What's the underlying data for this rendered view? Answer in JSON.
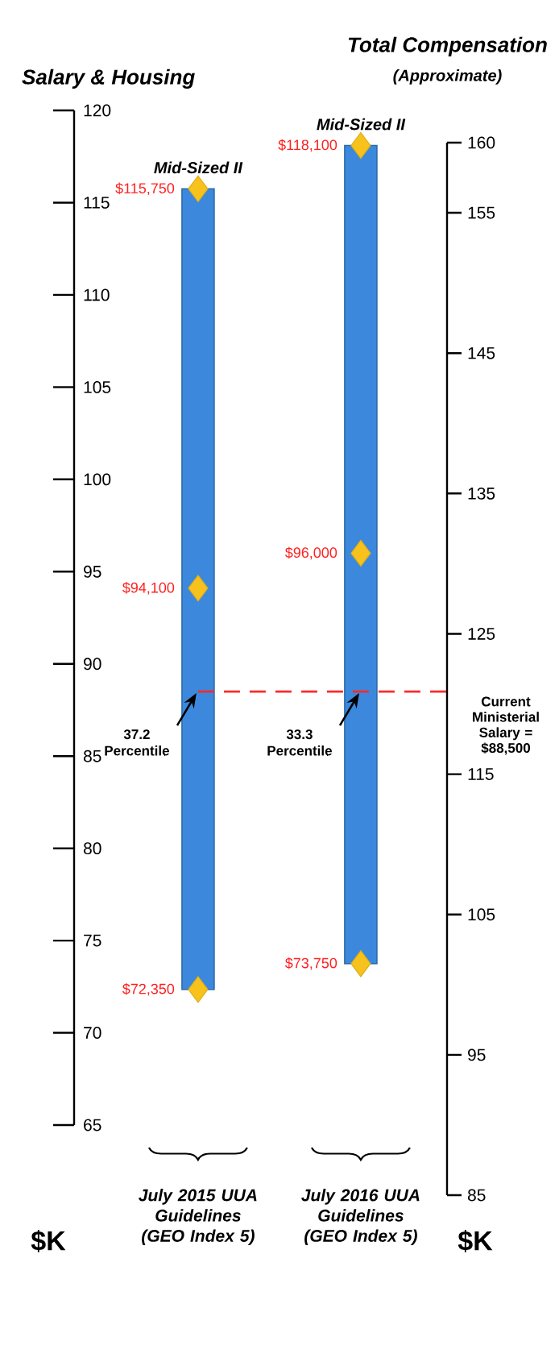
{
  "chart_data": {
    "type": "bar",
    "categories": [
      "July 2015 UUA Guidelines (GEO Index 5)",
      "July 2016 UUA Guidelines (GEO Index 5)"
    ],
    "series": [
      {
        "color": "#3c88dc",
        "base": [
          72.35,
          73.75
        ],
        "values": [
          43.4,
          44.35
        ]
      },
      {
        "type": "scatter",
        "marker": "diamond",
        "color": "#f7c21b",
        "x": [
          "July 2015 UUA Guidelines (GEO Index 5)",
          "July 2015 UUA Guidelines (GEO Index 5)",
          "July 2015 UUA Guidelines (GEO Index 5)",
          "July 2016 UUA Guidelines (GEO Index 5)",
          "July 2016 UUA Guidelines (GEO Index 5)",
          "July 2016 UUA Guidelines (GEO Index 5)"
        ],
        "values": [
          72.35,
          94.1,
          115.75,
          73.75,
          96.0,
          118.1
        ]
      }
    ],
    "ylim": [
      65,
      120
    ],
    "yticks": [
      65,
      70,
      75,
      80,
      85,
      90,
      95,
      100,
      105,
      110,
      115,
      120
    ],
    "ylabel": "Salary & Housing",
    "y2lim": [
      85,
      160
    ],
    "y2ticks": [
      85,
      95,
      105,
      115,
      125,
      135,
      145,
      155,
      160
    ],
    "y2label": "Total Compensation",
    "ref_lines": [
      {
        "axis": "y",
        "value": 88.5,
        "label": "Current Ministerial Salary = $88,500",
        "color": "#ff2a2a",
        "line_style": "dashed"
      }
    ],
    "annotations": [
      {
        "text": "$72,350",
        "x": "July 2015 UUA Guidelines (GEO Index 5)",
        "y": 72.35
      },
      {
        "text": "$94,100",
        "x": "July 2015 UUA Guidelines (GEO Index 5)",
        "y": 94.1
      },
      {
        "text": "$115,750",
        "x": "July 2015 UUA Guidelines (GEO Index 5)",
        "y": 115.75
      },
      {
        "text": "$73,750",
        "x": "July 2016 UUA Guidelines (GEO Index 5)",
        "y": 73.75
      },
      {
        "text": "$96,000",
        "x": "July 2016 UUA Guidelines (GEO Index 5)",
        "y": 96.0
      },
      {
        "text": "$118,100",
        "x": "July 2016 UUA Guidelines (GEO Index 5)",
        "y": 118.1
      },
      {
        "text": "Mid-Sized II",
        "x": "July 2015 UUA Guidelines (GEO Index 5)",
        "y": 115.75
      },
      {
        "text": "Mid-Sized II",
        "x": "July 2016 UUA Guidelines (GEO Index 5)",
        "y": 118.1
      },
      "37.2 Percentile",
      "33.3 Percentile",
      "$K",
      "$K",
      "(Approximate)"
    ]
  }
}
